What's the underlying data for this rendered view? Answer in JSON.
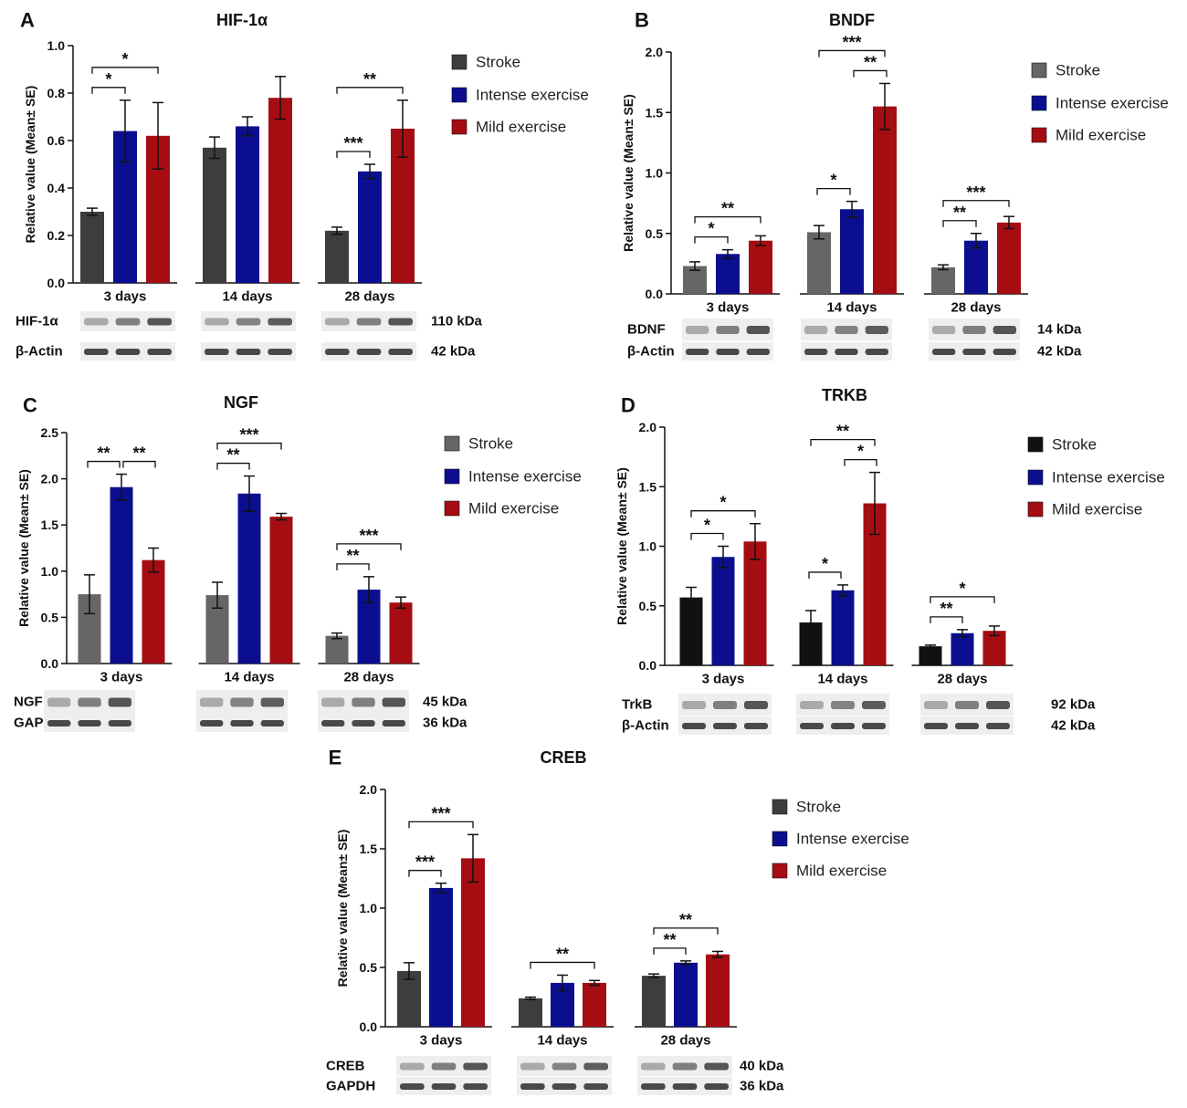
{
  "colors": {
    "stroke": "#3d3d3d",
    "stroke_light": "#666666",
    "stroke_black": "#111111",
    "intense": "#0b0f8f",
    "mild": "#a50d13",
    "blot_band": "#2b2b2b",
    "blot_bg": "#eeeeee"
  },
  "legend": [
    "Stroke",
    "Intense exercise",
    "Mild exercise"
  ],
  "chart_data": [
    {
      "panel": "A",
      "title": "HIF-1α",
      "type": "bar",
      "ylabel": "Relative value (Mean± SE)",
      "ylim": [
        0,
        1.0
      ],
      "yticks": [
        "0.0",
        "0.2",
        "0.4",
        "0.6",
        "0.8",
        "1.0"
      ],
      "ytick_values": [
        0,
        0.2,
        0.4,
        0.6,
        0.8,
        1.0
      ],
      "categories": [
        "3 days",
        "14 days",
        "28 days"
      ],
      "series": [
        {
          "name": "Stroke",
          "values": [
            0.3,
            0.57,
            0.22
          ],
          "errors": [
            0.015,
            0.045,
            0.015
          ]
        },
        {
          "name": "Intense exercise",
          "values": [
            0.64,
            0.66,
            0.47
          ],
          "errors": [
            0.13,
            0.04,
            0.03
          ]
        },
        {
          "name": "Mild exercise",
          "values": [
            0.62,
            0.78,
            0.65
          ],
          "errors": [
            0.14,
            0.09,
            0.12
          ]
        }
      ],
      "significance": [
        {
          "group": 0,
          "from": 0,
          "to": 1,
          "label": "*"
        },
        {
          "group": 0,
          "from": 0,
          "to": 2,
          "label": "*"
        },
        {
          "group": 2,
          "from": 0,
          "to": 1,
          "label": "***"
        },
        {
          "group": 2,
          "from": 0,
          "to": 2,
          "label": "**"
        }
      ],
      "blots": [
        {
          "label": "HIF-1α",
          "kda": "110 kDa"
        },
        {
          "label": "β-Actin",
          "kda": "42 kDa"
        }
      ]
    },
    {
      "panel": "B",
      "title": "BNDF",
      "type": "bar",
      "ylabel": "Relative value (Mean± SE)",
      "ylim": [
        0,
        2.0
      ],
      "yticks": [
        "0.0",
        "0.5",
        "1.0",
        "1.5",
        "2.0"
      ],
      "ytick_values": [
        0,
        0.5,
        1.0,
        1.5,
        2.0
      ],
      "categories": [
        "3 days",
        "14 days",
        "28 days"
      ],
      "series": [
        {
          "name": "Stroke",
          "values": [
            0.23,
            0.51,
            0.22
          ],
          "errors": [
            0.035,
            0.055,
            0.02
          ]
        },
        {
          "name": "Intense exercise",
          "values": [
            0.33,
            0.7,
            0.44
          ],
          "errors": [
            0.035,
            0.065,
            0.06
          ]
        },
        {
          "name": "Mild exercise",
          "values": [
            0.44,
            1.55,
            0.59
          ],
          "errors": [
            0.04,
            0.19,
            0.05
          ]
        }
      ],
      "significance": [
        {
          "group": 0,
          "from": 0,
          "to": 1,
          "label": "*"
        },
        {
          "group": 0,
          "from": 0,
          "to": 2,
          "label": "**"
        },
        {
          "group": 1,
          "from": 0,
          "to": 1,
          "label": "*"
        },
        {
          "group": 1,
          "from": 1,
          "to": 2,
          "label": "**"
        },
        {
          "group": 1,
          "from": 0,
          "to": 2,
          "label": "***"
        },
        {
          "group": 2,
          "from": 0,
          "to": 1,
          "label": "**"
        },
        {
          "group": 2,
          "from": 0,
          "to": 2,
          "label": "***"
        }
      ],
      "blots": [
        {
          "label": "BDNF",
          "kda": "14 kDa"
        },
        {
          "label": "β-Actin",
          "kda": "42 kDa"
        }
      ]
    },
    {
      "panel": "C",
      "title": "NGF",
      "type": "bar",
      "ylabel": "Relative value (Mean± SE)",
      "ylim": [
        0,
        2.5
      ],
      "yticks": [
        "0.0",
        "0.5",
        "1.0",
        "1.5",
        "2.0",
        "2.5"
      ],
      "ytick_values": [
        0,
        0.5,
        1.0,
        1.5,
        2.0,
        2.5
      ],
      "categories": [
        "3 days",
        "14 days",
        "28 days"
      ],
      "series": [
        {
          "name": "Stroke",
          "values": [
            0.75,
            0.74,
            0.3
          ],
          "errors": [
            0.21,
            0.14,
            0.03
          ]
        },
        {
          "name": "Intense exercise",
          "values": [
            1.91,
            1.84,
            0.8
          ],
          "errors": [
            0.14,
            0.19,
            0.14
          ]
        },
        {
          "name": "Mild exercise",
          "values": [
            1.12,
            1.59,
            0.66
          ],
          "errors": [
            0.13,
            0.035,
            0.06
          ]
        }
      ],
      "significance": [
        {
          "group": 0,
          "from": 0,
          "to": 1,
          "label": "**"
        },
        {
          "group": 0,
          "from": 1,
          "to": 2,
          "label": "**"
        },
        {
          "group": 1,
          "from": 0,
          "to": 1,
          "label": "**"
        },
        {
          "group": 1,
          "from": 0,
          "to": 2,
          "label": "***"
        },
        {
          "group": 2,
          "from": 0,
          "to": 1,
          "label": "**"
        },
        {
          "group": 2,
          "from": 0,
          "to": 2,
          "label": "***"
        }
      ],
      "blots": [
        {
          "label": "NGF",
          "kda": "45 kDa"
        },
        {
          "label": "GAPDH",
          "kda": "36 kDa"
        }
      ]
    },
    {
      "panel": "D",
      "title": "TRKB",
      "type": "bar",
      "ylabel": "Relative value (Mean± SE)",
      "ylim": [
        0,
        2.0
      ],
      "yticks": [
        "0.0",
        "0.5",
        "1.0",
        "1.5",
        "2.0"
      ],
      "ytick_values": [
        0,
        0.5,
        1.0,
        1.5,
        2.0
      ],
      "categories": [
        "3 days",
        "14 days",
        "28 days"
      ],
      "series": [
        {
          "name": "Stroke",
          "values": [
            0.57,
            0.36,
            0.16
          ],
          "errors": [
            0.085,
            0.1,
            0.01
          ]
        },
        {
          "name": "Intense exercise",
          "values": [
            0.91,
            0.63,
            0.27
          ],
          "errors": [
            0.09,
            0.045,
            0.03
          ]
        },
        {
          "name": "Mild exercise",
          "values": [
            1.04,
            1.36,
            0.29
          ],
          "errors": [
            0.15,
            0.26,
            0.04
          ]
        }
      ],
      "significance": [
        {
          "group": 0,
          "from": 0,
          "to": 1,
          "label": "*"
        },
        {
          "group": 0,
          "from": 0,
          "to": 2,
          "label": "*"
        },
        {
          "group": 1,
          "from": 0,
          "to": 1,
          "label": "*"
        },
        {
          "group": 1,
          "from": 1,
          "to": 2,
          "label": "*"
        },
        {
          "group": 1,
          "from": 0,
          "to": 2,
          "label": "**"
        },
        {
          "group": 2,
          "from": 0,
          "to": 1,
          "label": "**"
        },
        {
          "group": 2,
          "from": 0,
          "to": 2,
          "label": "*"
        }
      ],
      "blots": [
        {
          "label": "TrkB",
          "kda": "92 kDa"
        },
        {
          "label": "β-Actin",
          "kda": "42 kDa"
        }
      ]
    },
    {
      "panel": "E",
      "title": "CREB",
      "type": "bar",
      "ylabel": "Relative value (Mean± SE)",
      "ylim": [
        0,
        2.0
      ],
      "yticks": [
        "0.0",
        "0.5",
        "1.0",
        "1.5",
        "2.0"
      ],
      "ytick_values": [
        0,
        0.5,
        1.0,
        1.5,
        2.0
      ],
      "categories": [
        "3 days",
        "14 days",
        "28 days"
      ],
      "series": [
        {
          "name": "Stroke",
          "values": [
            0.47,
            0.24,
            0.43
          ],
          "errors": [
            0.07,
            0.01,
            0.015
          ]
        },
        {
          "name": "Intense exercise",
          "values": [
            1.17,
            0.37,
            0.54
          ],
          "errors": [
            0.04,
            0.065,
            0.015
          ]
        },
        {
          "name": "Mild exercise",
          "values": [
            1.42,
            0.37,
            0.61
          ],
          "errors": [
            0.2,
            0.02,
            0.025
          ]
        }
      ],
      "significance": [
        {
          "group": 0,
          "from": 0,
          "to": 1,
          "label": "***"
        },
        {
          "group": 0,
          "from": 0,
          "to": 2,
          "label": "***"
        },
        {
          "group": 1,
          "from": 0,
          "to": 2,
          "label": "**"
        },
        {
          "group": 2,
          "from": 0,
          "to": 1,
          "label": "**"
        },
        {
          "group": 2,
          "from": 0,
          "to": 2,
          "label": "**"
        }
      ],
      "blots": [
        {
          "label": "CREB",
          "kda": "40 kDa"
        },
        {
          "label": "GAPDH",
          "kda": "36 kDa"
        }
      ]
    }
  ]
}
